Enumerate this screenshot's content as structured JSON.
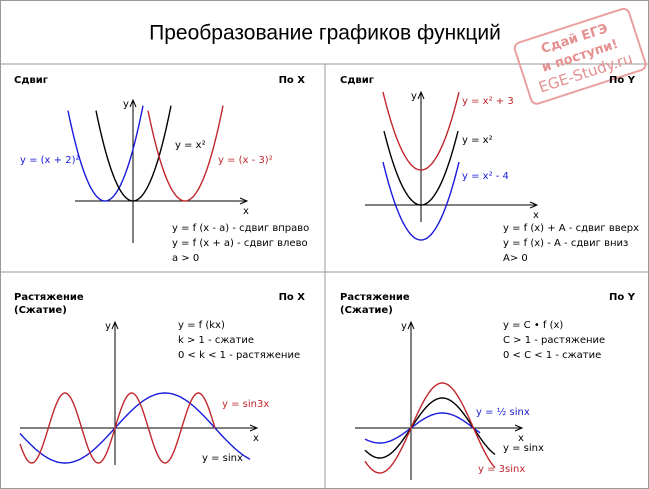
{
  "title": "Преобразование графиков функций",
  "stamp": [
    "Сдай ЕГЭ",
    "и поступи!",
    "EGE-Study.ru"
  ],
  "panels": [
    {
      "heading": [
        "Сдвиг"
      ],
      "axis": "По X",
      "y_label": "y",
      "x_label": "x",
      "curves": [
        "y = (x + 2)²",
        "y = x²",
        "y = (x - 3)²"
      ],
      "notes": [
        "y = f  (x - a) - сдвиг вправо",
        "y = f  (x + a) - сдвиг влево",
        "a > 0"
      ]
    },
    {
      "heading": [
        "Сдвиг"
      ],
      "axis": "По Y",
      "y_label": "y",
      "x_label": "x",
      "curves": [
        "y = x² + 3",
        "y = x²",
        "y = x² - 4"
      ],
      "notes": [
        "y = f  (x) + A - сдвиг вверх",
        "y = f  (x) - A - сдвиг вниз",
        "A> 0"
      ]
    },
    {
      "heading": [
        "Растяжение",
        "(Сжатие)"
      ],
      "axis": "По X",
      "y_label": "y",
      "x_label": "x",
      "curves": [
        "y = sin3x",
        "y = sinx"
      ],
      "notes": [
        "y = f (kx)",
        "k > 1 - сжатие",
        "0 < k < 1 - растяжение"
      ]
    },
    {
      "heading": [
        "Растяжение",
        "(Сжатие)"
      ],
      "axis": "По Y",
      "y_label": "y",
      "x_label": "x",
      "curves": [
        "y = ½ sinx",
        "y = sinx",
        "y = 3sinx"
      ],
      "notes": [
        "y = C • f (x)",
        "C > 1 - растяжение",
        "0 < C < 1 - сжатие"
      ]
    }
  ]
}
